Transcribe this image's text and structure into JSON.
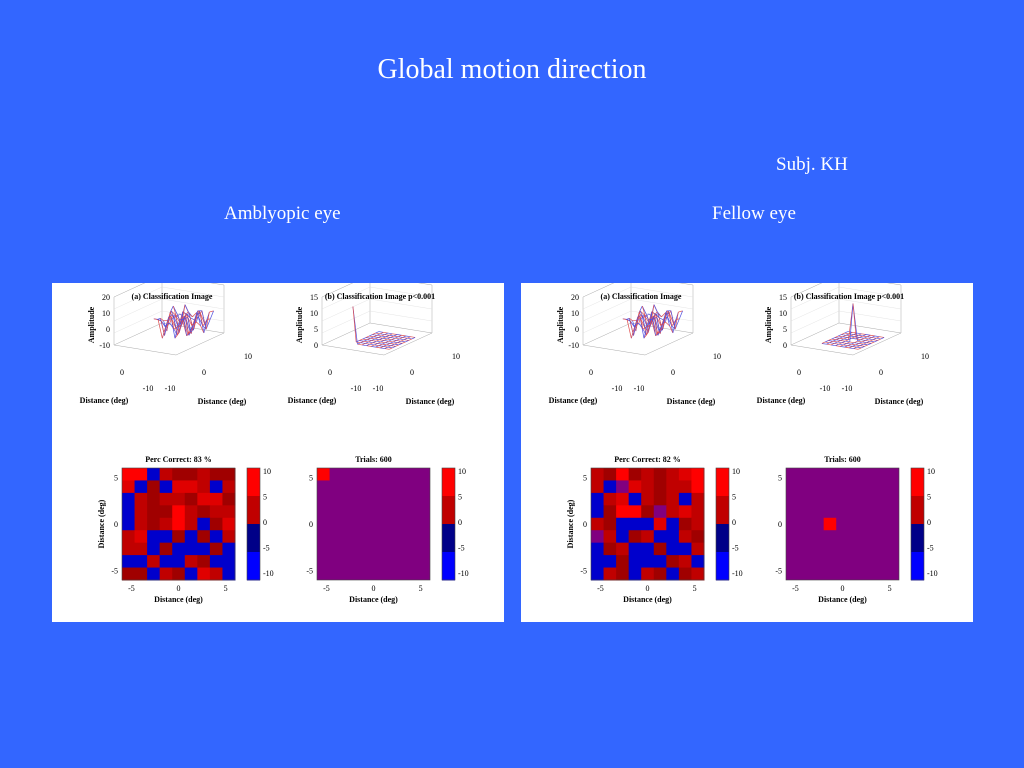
{
  "slide": {
    "title": "Global motion direction",
    "subject": "Subj. KH",
    "left_label": "Amblyopic  eye",
    "right_label": "Fellow eye"
  },
  "panels": [
    {
      "id": "amblyopic",
      "surf_a_title": "(a)  Classification Image",
      "surf_b_title": "(b)  Classification Image p<0.001",
      "heat_a_title": "Perc Correct: 83 %",
      "heat_b_title": "Trials: 600"
    },
    {
      "id": "fellow",
      "surf_a_title": "(a)  Classification Image",
      "surf_b_title": "(b)  Classification Image p<0.001",
      "heat_a_title": "Perc Correct: 82 %",
      "heat_b_title": "Trials: 600"
    }
  ],
  "axes": {
    "amplitude": "Amplitude",
    "distance": "Distance (deg)",
    "distance_y": "Distance (deg)"
  },
  "colors": {
    "background": "#3366ff",
    "red": "#ff0000",
    "dark_red": "#8b0000",
    "blue": "#0000cc",
    "purple": "#800080"
  },
  "chart_data": [
    {
      "type": "heatmap",
      "title": "Perc Correct: 83 %",
      "xlabel": "Distance (deg)",
      "ylabel": "Distance (deg)",
      "xlim": [
        -6,
        6
      ],
      "ylim": [
        -6,
        6
      ],
      "xticks": [
        "-5",
        "0",
        "5"
      ],
      "yticks": [
        "5",
        "0",
        "-5"
      ],
      "colorbar": [
        "10",
        "5",
        "0",
        "-5",
        "-10"
      ],
      "values": [
        [
          10,
          10,
          -10,
          6,
          4,
          4,
          6,
          4,
          4
        ],
        [
          8,
          -10,
          4,
          -8,
          8,
          8,
          6,
          -10,
          6
        ],
        [
          -10,
          6,
          4,
          6,
          6,
          4,
          8,
          8,
          4
        ],
        [
          -10,
          6,
          4,
          4,
          10,
          6,
          4,
          6,
          6
        ],
        [
          -10,
          6,
          4,
          6,
          10,
          6,
          -10,
          4,
          8
        ],
        [
          6,
          8,
          -10,
          -6,
          4,
          -10,
          4,
          -10,
          6
        ],
        [
          6,
          6,
          -10,
          4,
          -10,
          -8,
          -10,
          4,
          -10
        ],
        [
          -10,
          -10,
          6,
          -10,
          -10,
          6,
          4,
          -10,
          -10
        ],
        [
          4,
          4,
          -10,
          6,
          4,
          -10,
          8,
          6,
          -10
        ]
      ]
    },
    {
      "type": "heatmap",
      "title": "Trials: 600",
      "xlabel": "Distance (deg)",
      "ylabel": "",
      "xlim": [
        -6,
        6
      ],
      "ylim": [
        -6,
        6
      ],
      "xticks": [
        "-5",
        "0",
        "5"
      ],
      "yticks": [
        "5",
        "0",
        "-5"
      ],
      "colorbar": [
        "10",
        "5",
        "0",
        "-5",
        "-10"
      ],
      "background_value": 0,
      "peaks": [
        {
          "row": 0,
          "col": 0,
          "value": 10
        }
      ]
    },
    {
      "type": "heatmap",
      "title": "Perc Correct: 82 %",
      "xlabel": "Distance (deg)",
      "ylabel": "Distance (deg)",
      "xlim": [
        -6,
        6
      ],
      "ylim": [
        -6,
        6
      ],
      "xticks": [
        "-5",
        "0",
        "5"
      ],
      "yticks": [
        "5",
        "0",
        "-5"
      ],
      "colorbar": [
        "10",
        "5",
        "0",
        "-5",
        "-10"
      ],
      "values": [
        [
          6,
          4,
          10,
          4,
          6,
          4,
          6,
          8,
          10
        ],
        [
          6,
          -10,
          0,
          8,
          6,
          4,
          6,
          6,
          10
        ],
        [
          -10,
          6,
          8,
          -10,
          6,
          4,
          6,
          -10,
          6
        ],
        [
          -10,
          4,
          10,
          10,
          4,
          0,
          6,
          8,
          6
        ],
        [
          6,
          4,
          -8,
          -10,
          -10,
          8,
          -10,
          4,
          6
        ],
        [
          0,
          6,
          -10,
          4,
          6,
          -10,
          -8,
          6,
          4
        ],
        [
          -10,
          4,
          6,
          -10,
          -10,
          4,
          -10,
          -10,
          6
        ],
        [
          -10,
          -10,
          4,
          -10,
          -10,
          -10,
          4,
          6,
          -10
        ],
        [
          -10,
          6,
          4,
          -10,
          6,
          4,
          -10,
          4,
          6
        ]
      ]
    },
    {
      "type": "heatmap",
      "title": "Trials: 600",
      "xlabel": "Distance (deg)",
      "ylabel": "",
      "xlim": [
        -6,
        6
      ],
      "ylim": [
        -6,
        6
      ],
      "xticks": [
        "-5",
        "0",
        "5"
      ],
      "yticks": [
        "5",
        "0",
        "-5"
      ],
      "colorbar": [
        "10",
        "5",
        "0",
        "-5",
        "-10"
      ],
      "background_value": 0,
      "peaks": [
        {
          "row": 4,
          "col": 3,
          "value": 10
        }
      ]
    },
    {
      "type": "surface",
      "title": "(a)  Classification Image",
      "zlabel": "Amplitude",
      "xlabel": "Distance (deg)",
      "ylabel": "Distance (deg)",
      "zticks": [
        "20",
        "10",
        "0",
        "-10"
      ],
      "xticks": [
        "-10",
        "0",
        "10"
      ],
      "yticks": [
        "-10",
        "0"
      ]
    },
    {
      "type": "surface",
      "title": "(b)  Classification Image p<0.001",
      "zlabel": "Amplitude",
      "xlabel": "Distance (deg)",
      "ylabel": "Distance (deg)",
      "zticks": [
        "15",
        "10",
        "5",
        "0"
      ],
      "xticks": [
        "-10",
        "0",
        "10"
      ],
      "yticks": [
        "-10",
        "0"
      ],
      "peak": "corner"
    },
    {
      "type": "surface",
      "title": "(a)  Classification Image",
      "zlabel": "Amplitude",
      "xlabel": "Distance (deg)",
      "ylabel": "Distance (deg)",
      "zticks": [
        "20",
        "10",
        "0",
        "-10"
      ],
      "xticks": [
        "-10",
        "0",
        "10"
      ],
      "yticks": [
        "-10",
        "0"
      ]
    },
    {
      "type": "surface",
      "title": "(b)  Classification Image p<0.001",
      "zlabel": "Amplitude",
      "xlabel": "Distance (deg)",
      "ylabel": "Distance (deg)",
      "zticks": [
        "15",
        "10",
        "5",
        "0"
      ],
      "xticks": [
        "-10",
        "0",
        "10"
      ],
      "yticks": [
        "-10",
        "0"
      ],
      "peak": "center"
    }
  ]
}
